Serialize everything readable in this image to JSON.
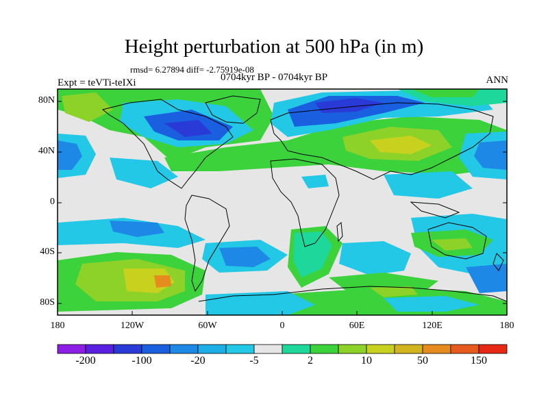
{
  "header": {
    "title": "Height perturbation at 500 hPa (in m)",
    "stats": "rmsd= 6.27894 diff= -2.75919e-08",
    "subtitle": "0704kyr BP - 0704kyr BP",
    "left_label": "Expt = teVTi-teIXi",
    "right_label": "ANN"
  },
  "axes": {
    "y_ticks": [
      "80N",
      "40N",
      "0",
      "40S",
      "80S"
    ],
    "x_ticks": [
      "180",
      "120W",
      "60W",
      "0",
      "60E",
      "120E",
      "180"
    ]
  },
  "colorbar": {
    "labels": [
      "-200",
      "-100",
      "-20",
      "-5",
      "2",
      "10",
      "50",
      "150"
    ],
    "colors": [
      "#8c1ee6",
      "#5a1fe0",
      "#2a3ad6",
      "#1a5fe0",
      "#1e88e6",
      "#1eaee6",
      "#23c8e6",
      "#e6e6e6",
      "#1ed79a",
      "#3cd23c",
      "#8cd228",
      "#c8d21e",
      "#d2b41e",
      "#e68c1e",
      "#e65a1e",
      "#e62814"
    ]
  },
  "map": {
    "colors": {
      "background": "#e6e6e6",
      "light_blue": "#23c8e6",
      "mid_blue": "#1e88e6",
      "deep_blue": "#1a5fe0",
      "dark_blue": "#2a3ad6",
      "teal": "#1ed79a",
      "green": "#3cd23c",
      "yellow_green": "#8cd228",
      "yellow": "#c8d21e",
      "orange": "#e68c1e",
      "coast": "#000000"
    }
  }
}
